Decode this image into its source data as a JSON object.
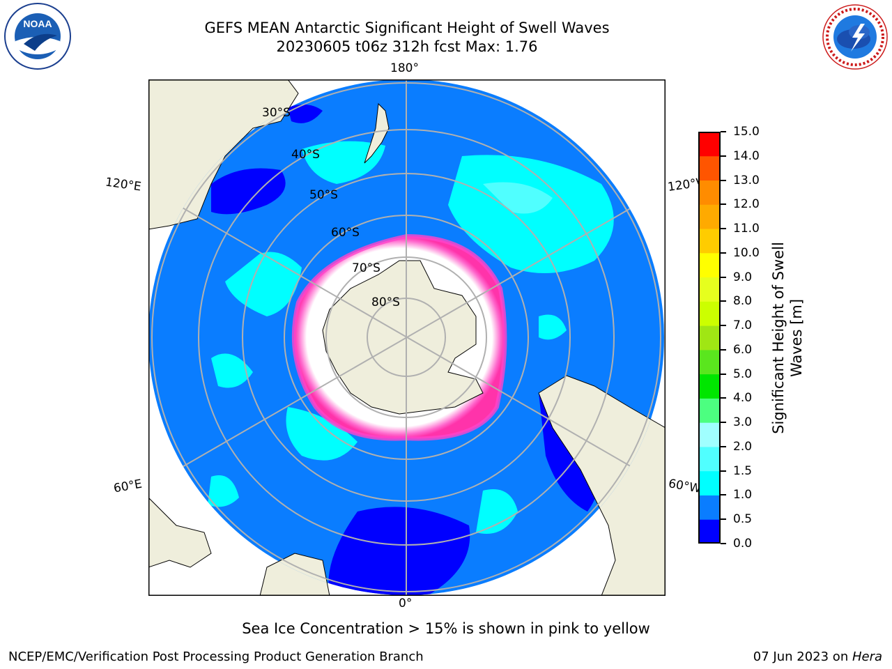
{
  "header": {
    "title_line1": "GEFS MEAN Antarctic Significant Height of Swell Waves",
    "title_line2": "20230605 t06z 312h fcst   Max: 1.76"
  },
  "logos": {
    "left": {
      "icon": "noaa-logo-icon",
      "text": "NOAA",
      "ring_text": "NATIONAL OCEANIC AND ATMOSPHERIC ADMINISTRATION · U.S. DEPARTMENT OF COMMERCE"
    },
    "right": {
      "icon": "national-weather-service-logo-icon",
      "ring_text": "NATIONAL WEATHER SERVICE"
    }
  },
  "map": {
    "projection": "south polar stereographic",
    "longitude_labels": {
      "top": "180°",
      "bottom": "0°",
      "left_upper": "120°E",
      "left_lower": "60°E",
      "right_upper": "120°W",
      "right_lower": "60°W"
    },
    "latitude_labels": [
      "30°S",
      "40°S",
      "50°S",
      "60°S",
      "70°S",
      "80°S"
    ],
    "colors": {
      "ocean": "#0a7dff",
      "land": "#efeedc",
      "ice": "#ffffff",
      "grid": "#b0b0b0"
    }
  },
  "colorbar": {
    "label": "Significant Height of Swell Waves [m]",
    "label_line1": "Significant Height of Swell",
    "label_line2": "Waves [m]",
    "ticks": [
      "0.0",
      "0.5",
      "1.0",
      "1.5",
      "2.0",
      "3.0",
      "4.0",
      "5.0",
      "6.0",
      "7.0",
      "8.0",
      "9.0",
      "10.0",
      "11.0",
      "12.0",
      "13.0",
      "14.0",
      "15.0"
    ],
    "colors": [
      "#0000ff",
      "#0a7dff",
      "#00ffff",
      "#50ffff",
      "#a0ffff",
      "#4cff80",
      "#00e600",
      "#5ae61e",
      "#a0e614",
      "#ccff00",
      "#e6ff1e",
      "#ffff00",
      "#ffcc00",
      "#ffaa00",
      "#ff8c00",
      "#ff5500",
      "#ff0000"
    ]
  },
  "footer": {
    "sea_ice_note": "Sea Ice Concentration > 15% is shown in pink to yellow",
    "credit": "NCEP/EMC/Verification Post Processing Product Generation Branch",
    "date_prefix": "07 Jun 2023 on ",
    "machine": "Hera"
  }
}
